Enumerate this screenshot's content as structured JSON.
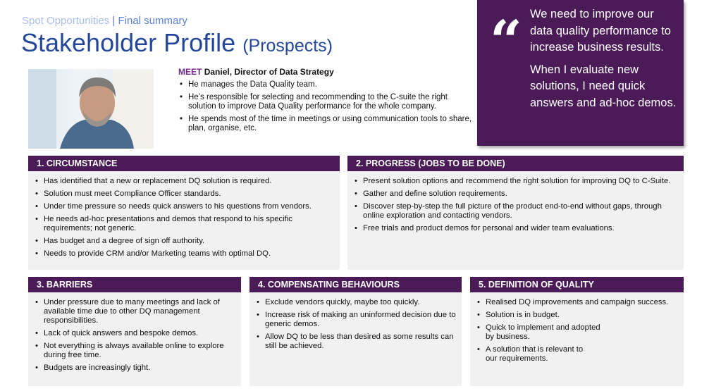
{
  "header": {
    "breadcrumb_section": "Spot Opportunities",
    "breadcrumb_separator": " | ",
    "breadcrumb_page": "Final summary",
    "title": "Stakeholder Profile",
    "subtitle": "(Prospects)"
  },
  "persona": {
    "meet_label": "MEET",
    "name_role": "Daniel, Director of Data Strategy",
    "bullets": [
      "He manages the Data Quality team.",
      "He’s responsible for selecting and recommending to the C-suite the right solution to improve Data Quality performance for the whole company.",
      "He spends most of the time in meetings or using communication tools to share, plan, organise, etc."
    ]
  },
  "quote": {
    "mark": "“",
    "paragraphs": [
      "We need to improve our data quality performance to increase business results.",
      "When I evaluate new solutions, I need quick answers and ad-hoc demos."
    ]
  },
  "colors": {
    "accent": "#4a1b57",
    "title": "#24479a",
    "card_bg": "#f1f1f1"
  },
  "sections": [
    {
      "title": "1. CIRCUMSTANCE",
      "items": [
        "Has identified that a new or replacement DQ solution is required.",
        "Solution must meet Compliance Officer standards.",
        "Under time pressure so needs quick answers to his questions from vendors.",
        "He needs ad-hoc presentations and demos that respond to his specific requirements; not generic.",
        "Has budget and a degree of sign off authority.",
        "Needs to provide CRM and/or Marketing teams with optimal DQ."
      ]
    },
    {
      "title": "2. PROGRESS (JOBS TO BE DONE)",
      "items": [
        "Present solution options and recommend the right solution for improving DQ to C-Suite.",
        "Gather and define solution requirements.",
        "Discover step-by-step the full picture of the product end-to-end without gaps, through online exploration and contacting vendors.",
        "Free trials and product demos for personal and wider team evaluations."
      ]
    },
    {
      "title": "3. BARRIERS",
      "items": [
        "Under pressure due to many meetings and lack of available time due to other DQ management responsibilities.",
        "Lack of quick answers and bespoke demos.",
        "Not everything is always available online to explore during free time.",
        "Budgets are increasingly tight."
      ]
    },
    {
      "title": "4. COMPENSATING BEHAVIOURS",
      "items": [
        "Exclude vendors quickly, maybe too quickly.",
        "Increase risk of making an uninformed decision due to generic demos.",
        "Allow DQ to be less than desired as some results can still be achieved."
      ]
    },
    {
      "title": "5. DEFINITION OF QUALITY",
      "items": [
        "Realised DQ improvements and campaign success.",
        "Solution is in budget.",
        "Quick to implement and adopted by business.",
        "A solution that is relevant to our requirements."
      ]
    }
  ]
}
